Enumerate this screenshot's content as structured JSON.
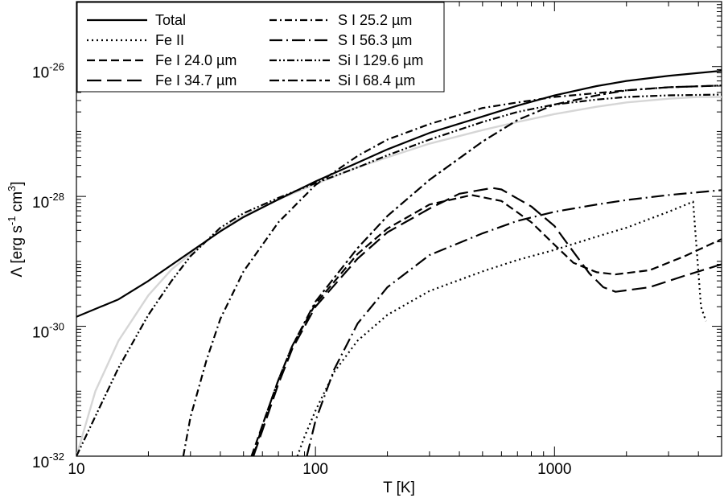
{
  "chart_data": {
    "type": "line",
    "xscale": "log",
    "yscale": "log",
    "xlim": [
      10,
      5000
    ],
    "ylim": [
      1e-32,
      1e-25
    ],
    "xlabel": "T [K]",
    "ylabel": {
      "base": "Λ [erg s",
      "exp1": "-1",
      "mid": " cm",
      "exp2": "3",
      "end": "]"
    },
    "x_ticks": [
      {
        "value": 10,
        "label": "10"
      },
      {
        "value": 100,
        "label": "100"
      },
      {
        "value": 1000,
        "label": "1000"
      }
    ],
    "y_ticks": [
      {
        "value": 1e-32,
        "base": "10",
        "exp": "-32"
      },
      {
        "value": 1e-30,
        "base": "10",
        "exp": "-30"
      },
      {
        "value": 1e-28,
        "base": "10",
        "exp": "-28"
      },
      {
        "value": 1e-26,
        "base": "10",
        "exp": "-26"
      }
    ],
    "grid": false,
    "legend_position": "top-left",
    "legend_columns": 2,
    "series": [
      {
        "name": "Total",
        "style": "solid",
        "color": "#000000",
        "points": [
          [
            10,
            1.4e-30
          ],
          [
            15,
            2.6e-30
          ],
          [
            20,
            5e-30
          ],
          [
            30,
            1.4e-29
          ],
          [
            40,
            2.9e-29
          ],
          [
            50,
            4.8e-29
          ],
          [
            70,
            9e-29
          ],
          [
            100,
            1.7e-28
          ],
          [
            150,
            3.3e-28
          ],
          [
            200,
            5.3e-28
          ],
          [
            300,
            9.5e-28
          ],
          [
            500,
            1.7e-27
          ],
          [
            700,
            2.5e-27
          ],
          [
            1000,
            3.6e-27
          ],
          [
            1500,
            5e-27
          ],
          [
            2000,
            6e-27
          ],
          [
            3000,
            7.2e-27
          ],
          [
            5000,
            8.6e-27
          ]
        ]
      },
      {
        "name": "Fe II",
        "style": "dotted",
        "color": "#000000",
        "points": [
          [
            84,
            1e-32
          ],
          [
            90,
            2e-32
          ],
          [
            100,
            5e-32
          ],
          [
            120,
            2e-31
          ],
          [
            150,
            6e-31
          ],
          [
            200,
            1.5e-30
          ],
          [
            300,
            3.5e-30
          ],
          [
            500,
            7e-30
          ],
          [
            700,
            1.05e-29
          ],
          [
            1000,
            1.5e-29
          ],
          [
            1500,
            2.4e-29
          ],
          [
            2000,
            3.3e-29
          ],
          [
            3000,
            5.8e-29
          ],
          [
            3800,
            8.3e-29
          ],
          [
            4100,
            2e-30
          ],
          [
            4300,
            1.2e-30
          ]
        ]
      },
      {
        "name": "Fe I 24.0 µm",
        "style": "short-dash",
        "color": "#000000",
        "points": [
          [
            54,
            1e-32
          ],
          [
            60,
            3e-32
          ],
          [
            70,
            1.5e-31
          ],
          [
            80,
            5e-31
          ],
          [
            100,
            2.2e-30
          ],
          [
            150,
            1.3e-29
          ],
          [
            200,
            3.2e-29
          ],
          [
            300,
            7.5e-29
          ],
          [
            450,
            1.05e-28
          ],
          [
            600,
            8.5e-29
          ],
          [
            800,
            4e-29
          ],
          [
            1000,
            1.8e-29
          ],
          [
            1200,
            9.5e-30
          ],
          [
            1500,
            6.8e-30
          ],
          [
            1800,
            6.3e-30
          ],
          [
            2500,
            7.3e-30
          ],
          [
            3500,
            1.2e-29
          ],
          [
            5000,
            2.2e-29
          ]
        ]
      },
      {
        "name": "Fe I 34.7 µm",
        "style": "long-dash",
        "color": "#000000",
        "points": [
          [
            55,
            1e-32
          ],
          [
            60,
            2.5e-32
          ],
          [
            70,
            1.3e-31
          ],
          [
            80,
            4.5e-31
          ],
          [
            100,
            2e-30
          ],
          [
            150,
            1.1e-29
          ],
          [
            200,
            2.8e-29
          ],
          [
            300,
            6.5e-29
          ],
          [
            400,
            1.1e-28
          ],
          [
            550,
            1.35e-28
          ],
          [
            600,
            1.28e-28
          ],
          [
            800,
            7e-29
          ],
          [
            1000,
            3.5e-29
          ],
          [
            1200,
            1.4e-29
          ],
          [
            1400,
            6.5e-30
          ],
          [
            1600,
            4e-30
          ],
          [
            1800,
            3.4e-30
          ],
          [
            2500,
            4e-30
          ],
          [
            3500,
            6e-30
          ],
          [
            5000,
            9e-30
          ]
        ]
      },
      {
        "name": "S I 25.2 µm",
        "style": "dash-dot",
        "color": "#000000",
        "points": [
          [
            28,
            1e-32
          ],
          [
            30,
            4e-32
          ],
          [
            35,
            3e-31
          ],
          [
            40,
            1.3e-30
          ],
          [
            50,
            7e-30
          ],
          [
            70,
            4e-29
          ],
          [
            100,
            1.5e-28
          ],
          [
            150,
            4.2e-28
          ],
          [
            200,
            7.5e-28
          ],
          [
            300,
            1.3e-27
          ],
          [
            500,
            2.3e-27
          ],
          [
            700,
            2.8e-27
          ],
          [
            1000,
            3.4e-27
          ],
          [
            1500,
            3.9e-27
          ],
          [
            2000,
            4.3e-27
          ],
          [
            3000,
            4.8e-27
          ],
          [
            5000,
            5.1e-27
          ]
        ]
      },
      {
        "name": "S I 56.3 µm",
        "style": "long-dash-dot",
        "color": "#000000",
        "points": [
          [
            92,
            1e-32
          ],
          [
            100,
            3.5e-32
          ],
          [
            120,
            2.2e-31
          ],
          [
            150,
            1.1e-30
          ],
          [
            200,
            4e-30
          ],
          [
            300,
            1.25e-29
          ],
          [
            500,
            2.7e-29
          ],
          [
            700,
            4.2e-29
          ],
          [
            1000,
            5.8e-29
          ],
          [
            1500,
            7.5e-29
          ],
          [
            2000,
            8.8e-29
          ],
          [
            3000,
            1.05e-28
          ],
          [
            5000,
            1.25e-28
          ]
        ]
      },
      {
        "name": "Si I 129.6 µm",
        "style": "dash-dot-dot",
        "color": "#000000",
        "points": [
          [
            10,
            1e-32
          ],
          [
            15,
            2.3e-31
          ],
          [
            20,
            1.5e-30
          ],
          [
            25,
            5e-30
          ],
          [
            30,
            1.2e-29
          ],
          [
            40,
            3.3e-29
          ],
          [
            50,
            5.5e-29
          ],
          [
            70,
            9.5e-29
          ],
          [
            100,
            1.6e-28
          ],
          [
            150,
            2.8e-28
          ],
          [
            200,
            4.3e-28
          ],
          [
            300,
            7.5e-28
          ],
          [
            500,
            1.4e-27
          ],
          [
            700,
            2e-27
          ],
          [
            1000,
            2.6e-27
          ],
          [
            1500,
            3.1e-27
          ],
          [
            2000,
            3.4e-27
          ],
          [
            3000,
            3.6e-27
          ],
          [
            5000,
            3.7e-27
          ]
        ]
      },
      {
        "name": "Si I 68.4 µm",
        "style": "dash-dot-long",
        "color": "#000000",
        "points": [
          [
            55,
            1e-32
          ],
          [
            60,
            3e-32
          ],
          [
            70,
            1.5e-31
          ],
          [
            80,
            5e-31
          ],
          [
            100,
            2.4e-30
          ],
          [
            150,
            1.6e-29
          ],
          [
            200,
            5e-29
          ],
          [
            300,
            1.8e-28
          ],
          [
            500,
            7e-28
          ],
          [
            700,
            1.5e-27
          ],
          [
            1000,
            2.6e-27
          ],
          [
            1500,
            3.6e-27
          ],
          [
            2000,
            4.3e-27
          ],
          [
            3000,
            4.8e-27
          ],
          [
            5000,
            5.1e-27
          ]
        ]
      },
      {
        "name": "",
        "style": "solid",
        "color": "#d6d6d6",
        "points": [
          [
            10,
            1e-32
          ],
          [
            12,
            1e-31
          ],
          [
            15,
            6e-31
          ],
          [
            20,
            3e-30
          ],
          [
            25,
            7.5e-30
          ],
          [
            30,
            1.3e-29
          ],
          [
            40,
            3e-29
          ],
          [
            50,
            5e-29
          ],
          [
            70,
            9e-29
          ],
          [
            100,
            1.55e-28
          ],
          [
            150,
            2.8e-28
          ],
          [
            200,
            4e-28
          ],
          [
            300,
            6.5e-28
          ],
          [
            500,
            1.05e-27
          ],
          [
            700,
            1.4e-27
          ],
          [
            1000,
            1.85e-27
          ],
          [
            1500,
            2.4e-27
          ],
          [
            2000,
            2.8e-27
          ],
          [
            3000,
            3.2e-27
          ],
          [
            4000,
            3.4e-27
          ],
          [
            5000,
            3.4e-27
          ]
        ]
      }
    ]
  }
}
